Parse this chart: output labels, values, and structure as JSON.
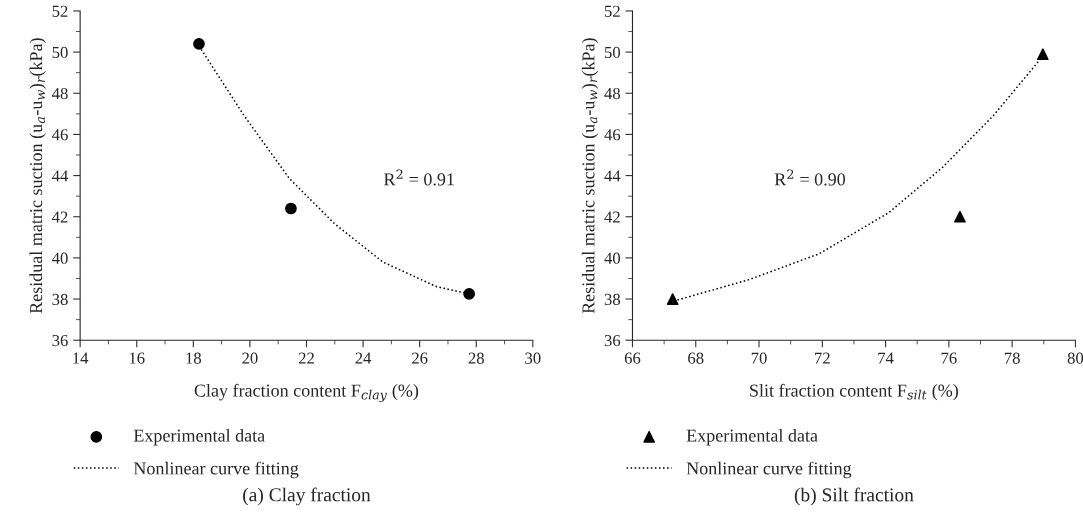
{
  "chart_data": [
    {
      "type": "scatter",
      "title": "(a) Clay fraction",
      "xlabel": "Clay fraction content F$_{clay}$ (%)",
      "ylabel": "Residual matric suction (u$_{a}$-u$_{w}$)$_{r}$(kPa)",
      "xlim": [
        14,
        30
      ],
      "xticks": [
        14,
        16,
        18,
        20,
        22,
        24,
        26,
        28,
        30
      ],
      "ylim": [
        36,
        52
      ],
      "yticks": [
        36,
        38,
        40,
        42,
        44,
        46,
        48,
        50,
        52
      ],
      "grid": false,
      "legend": "bottom",
      "annotations": [
        "R$^{2}$ = 0.91"
      ],
      "series": [
        {
          "name": "Experimental data",
          "marker": "circle",
          "color": "#000000",
          "x": [
            18.2,
            21.45,
            27.75
          ],
          "values": [
            50.4,
            42.4,
            38.25
          ]
        },
        {
          "name": "Nonlinear curve fitting",
          "type": "line",
          "line_style": "dotted",
          "marker": "none",
          "color": "#000000",
          "x": [
            18.2,
            19.8,
            21.4,
            23.0,
            24.7,
            26.6,
            27.75
          ],
          "values": [
            50.3,
            46.9,
            43.85,
            41.65,
            39.8,
            38.6,
            38.25
          ]
        }
      ]
    },
    {
      "type": "scatter",
      "title": "(b) Silt fraction",
      "xlabel": "Slit fraction content F$_{silt}$ (%)",
      "ylabel": "Residual matric suction (u$_{a}$-u$_{w}$)$_{r}$(kPa)",
      "xlim": [
        66,
        80
      ],
      "xticks": [
        66,
        68,
        70,
        72,
        74,
        76,
        78,
        80
      ],
      "ylim": [
        36,
        52
      ],
      "yticks": [
        36,
        38,
        40,
        42,
        44,
        46,
        48,
        50,
        52
      ],
      "grid": false,
      "legend": "bottom",
      "annotations": [
        "R$^{2}$ = 0.90"
      ],
      "series": [
        {
          "name": "Experimental data",
          "marker": "triangle",
          "color": "#000000",
          "x": [
            67.27,
            76.35,
            78.97
          ],
          "values": [
            38.0,
            42.0,
            49.9
          ]
        },
        {
          "name": "Nonlinear curve fitting",
          "type": "line",
          "line_style": "dotted",
          "marker": "none",
          "color": "#000000",
          "x": [
            67.3,
            69.7,
            71.9,
            74.1,
            75.8,
            77.4,
            78.97
          ],
          "values": [
            37.9,
            38.95,
            40.2,
            42.2,
            44.4,
            46.9,
            49.8
          ]
        }
      ]
    }
  ]
}
